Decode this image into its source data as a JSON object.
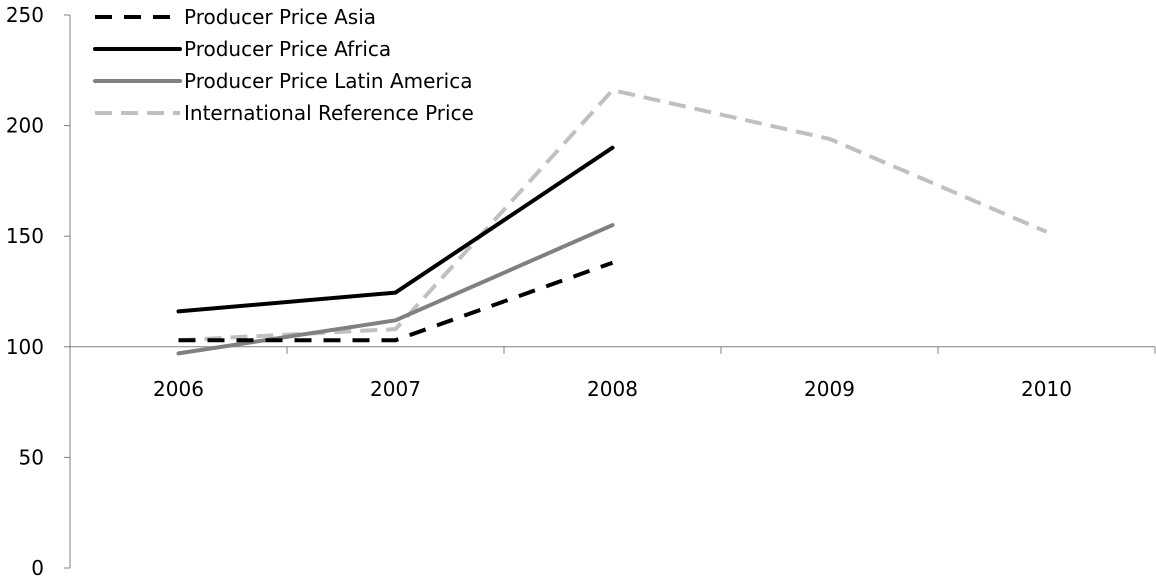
{
  "chart_data": {
    "type": "line",
    "categories": [
      "2006",
      "2007",
      "2008",
      "2009",
      "2010"
    ],
    "ylim": [
      0,
      250
    ],
    "yticks": [
      0,
      50,
      100,
      150,
      200,
      250
    ],
    "x_axis_crosses_at": 100,
    "grid": false,
    "legend_position": "top-left",
    "series": [
      {
        "name": "Producer Price Asia",
        "values": [
          103,
          103,
          138,
          null,
          null
        ],
        "color": "#000000",
        "style": "dashed-bold"
      },
      {
        "name": "Producer Price Africa",
        "values": [
          116,
          124.5,
          190,
          null,
          null
        ],
        "color": "#000000",
        "style": "solid"
      },
      {
        "name": "Producer Price Latin America",
        "values": [
          97,
          112,
          155,
          null,
          null
        ],
        "color": "#808080",
        "style": "solid"
      },
      {
        "name": "International Reference Price",
        "values": [
          103,
          108,
          216,
          194,
          152
        ],
        "color": "#c0c0c0",
        "style": "dashed-light"
      }
    ]
  }
}
